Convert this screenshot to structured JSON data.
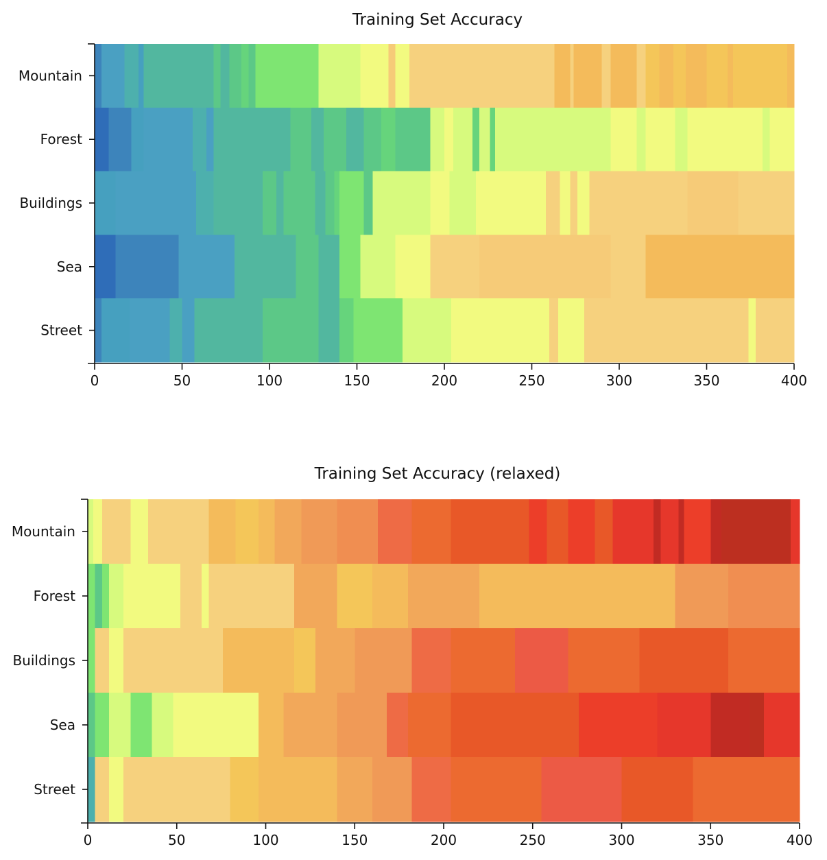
{
  "chart_data": [
    {
      "type": "heatmap",
      "title": "Training Set Accuracy",
      "xlabel": "",
      "ylabel": "",
      "xlim": [
        0,
        400
      ],
      "xticks": [
        0,
        50,
        100,
        150,
        200,
        250,
        300,
        350,
        400
      ],
      "rows": [
        "Mountain",
        "Forest",
        "Buildings",
        "Sea",
        "Street"
      ],
      "grid": false,
      "segments": [
        [
          [
            0,
            4,
            "#3d84bb"
          ],
          [
            4,
            17,
            "#4aa0c2"
          ],
          [
            17,
            25,
            "#4db0ad"
          ],
          [
            25,
            28,
            "#46a0bf"
          ],
          [
            28,
            68,
            "#52b79f"
          ],
          [
            68,
            72,
            "#5cc887"
          ],
          [
            72,
            77,
            "#52b79f"
          ],
          [
            77,
            84,
            "#5cc887"
          ],
          [
            84,
            88,
            "#66d47c"
          ],
          [
            88,
            92,
            "#5cc887"
          ],
          [
            92,
            128,
            "#7ee572"
          ],
          [
            128,
            152,
            "#d7fa7e"
          ],
          [
            152,
            168,
            "#f2fa80"
          ],
          [
            168,
            172,
            "#f6cb78"
          ],
          [
            172,
            180,
            "#f2fa80"
          ],
          [
            180,
            263,
            "#f6d17e"
          ],
          [
            263,
            272,
            "#f4bb5b"
          ],
          [
            272,
            274,
            "#f6d17e"
          ],
          [
            274,
            290,
            "#f4bb5b"
          ],
          [
            290,
            295,
            "#f6d17e"
          ],
          [
            295,
            310,
            "#f4bb5b"
          ],
          [
            310,
            315,
            "#f6d17e"
          ],
          [
            315,
            323,
            "#f4c659"
          ],
          [
            323,
            331,
            "#f4bb5b"
          ],
          [
            331,
            338,
            "#f4c659"
          ],
          [
            338,
            350,
            "#f4bb5b"
          ],
          [
            350,
            362,
            "#f4c659"
          ],
          [
            362,
            365,
            "#f4bb5b"
          ],
          [
            365,
            396,
            "#f4c659"
          ],
          [
            396,
            400,
            "#f4bb5b"
          ]
        ],
        [
          [
            0,
            8,
            "#2f6db8"
          ],
          [
            8,
            21,
            "#3d84bb"
          ],
          [
            21,
            28,
            "#46a0bf"
          ],
          [
            28,
            46,
            "#4aa0c2"
          ],
          [
            46,
            56,
            "#4aa0c2"
          ],
          [
            56,
            64,
            "#4db0ad"
          ],
          [
            64,
            68,
            "#4aa0c2"
          ],
          [
            68,
            112,
            "#52b79f"
          ],
          [
            112,
            124,
            "#5cc887"
          ],
          [
            124,
            131,
            "#52b79f"
          ],
          [
            131,
            144,
            "#5cc887"
          ],
          [
            144,
            154,
            "#52b79f"
          ],
          [
            154,
            164,
            "#5cc887"
          ],
          [
            164,
            172,
            "#66d47c"
          ],
          [
            172,
            192,
            "#5cc887"
          ],
          [
            192,
            200,
            "#d7fa7e"
          ],
          [
            200,
            205,
            "#f2fa80"
          ],
          [
            205,
            216,
            "#d7fa7e"
          ],
          [
            216,
            220,
            "#66d47c"
          ],
          [
            220,
            226,
            "#d7fa7e"
          ],
          [
            226,
            229,
            "#66d47c"
          ],
          [
            229,
            295,
            "#d7fa7e"
          ],
          [
            295,
            310,
            "#f2fa80"
          ],
          [
            310,
            315,
            "#d7fa7e"
          ],
          [
            315,
            332,
            "#f2fa80"
          ],
          [
            332,
            339,
            "#d7fa7e"
          ],
          [
            339,
            382,
            "#f2fa80"
          ],
          [
            382,
            386,
            "#d7fa7e"
          ],
          [
            386,
            400,
            "#f2fa80"
          ]
        ],
        [
          [
            0,
            12,
            "#46a0bf"
          ],
          [
            12,
            58,
            "#4aa0c2"
          ],
          [
            58,
            68,
            "#4db0ad"
          ],
          [
            68,
            96,
            "#52b79f"
          ],
          [
            96,
            104,
            "#5cc887"
          ],
          [
            104,
            108,
            "#52b79f"
          ],
          [
            108,
            126,
            "#5cc887"
          ],
          [
            126,
            132,
            "#52b79f"
          ],
          [
            132,
            137,
            "#5cc887"
          ],
          [
            137,
            140,
            "#66d47c"
          ],
          [
            140,
            154,
            "#7ee572"
          ],
          [
            154,
            159,
            "#5cc887"
          ],
          [
            159,
            192,
            "#d7fa7e"
          ],
          [
            192,
            203,
            "#f2fa80"
          ],
          [
            203,
            218,
            "#d7fa7e"
          ],
          [
            218,
            258,
            "#f2fa80"
          ],
          [
            258,
            266,
            "#f6d17e"
          ],
          [
            266,
            272,
            "#f2fa80"
          ],
          [
            272,
            276,
            "#f6d17e"
          ],
          [
            276,
            283,
            "#f2fa80"
          ],
          [
            283,
            294,
            "#f6d17e"
          ],
          [
            294,
            339,
            "#f6d17e"
          ],
          [
            339,
            368,
            "#f6cb78"
          ],
          [
            368,
            400,
            "#f6d17e"
          ]
        ],
        [
          [
            0,
            12,
            "#2f6db8"
          ],
          [
            12,
            33,
            "#3d84bb"
          ],
          [
            33,
            48,
            "#3d84bb"
          ],
          [
            48,
            80,
            "#4aa0c2"
          ],
          [
            80,
            100,
            "#52b79f"
          ],
          [
            100,
            115,
            "#52b79f"
          ],
          [
            115,
            128,
            "#5cc887"
          ],
          [
            128,
            140,
            "#52b79f"
          ],
          [
            140,
            152,
            "#7ee572"
          ],
          [
            152,
            172,
            "#d7fa7e"
          ],
          [
            172,
            192,
            "#f2fa80"
          ],
          [
            192,
            220,
            "#f6d17e"
          ],
          [
            220,
            295,
            "#f6cb78"
          ],
          [
            295,
            315,
            "#f6d17e"
          ],
          [
            315,
            350,
            "#f4bb5b"
          ],
          [
            350,
            400,
            "#f4bb5b"
          ]
        ],
        [
          [
            0,
            4,
            "#3d84bb"
          ],
          [
            4,
            20,
            "#46a0bf"
          ],
          [
            20,
            43,
            "#4aa0c2"
          ],
          [
            43,
            50,
            "#4db0ad"
          ],
          [
            50,
            57,
            "#4aa0c2"
          ],
          [
            57,
            68,
            "#52b79f"
          ],
          [
            68,
            96,
            "#52b79f"
          ],
          [
            96,
            108,
            "#5cc887"
          ],
          [
            108,
            128,
            "#5cc887"
          ],
          [
            128,
            140,
            "#52b79f"
          ],
          [
            140,
            148,
            "#66d47c"
          ],
          [
            148,
            176,
            "#7ee572"
          ],
          [
            176,
            204,
            "#d7fa7e"
          ],
          [
            204,
            235,
            "#f2fa80"
          ],
          [
            235,
            260,
            "#f2fa80"
          ],
          [
            260,
            265,
            "#f6d17e"
          ],
          [
            265,
            280,
            "#f2fa80"
          ],
          [
            280,
            310,
            "#f6d17e"
          ],
          [
            310,
            374,
            "#f6d17e"
          ],
          [
            374,
            378,
            "#f2fa80"
          ],
          [
            378,
            400,
            "#f6d17e"
          ]
        ]
      ]
    },
    {
      "type": "heatmap",
      "title": "Training Set Accuracy (relaxed)",
      "xlabel": "",
      "ylabel": "",
      "xlim": [
        0,
        400
      ],
      "xticks": [
        0,
        50,
        100,
        150,
        200,
        250,
        300,
        350,
        400
      ],
      "rows": [
        "Mountain",
        "Forest",
        "Buildings",
        "Sea",
        "Street"
      ],
      "grid": false,
      "segments": [
        [
          [
            0,
            3,
            "#d7fa7e"
          ],
          [
            3,
            8,
            "#f2fa80"
          ],
          [
            8,
            24,
            "#f6d17e"
          ],
          [
            24,
            34,
            "#f2fa80"
          ],
          [
            34,
            68,
            "#f6d17e"
          ],
          [
            68,
            83,
            "#f4bb5b"
          ],
          [
            83,
            96,
            "#f4c659"
          ],
          [
            96,
            105,
            "#f4bb5b"
          ],
          [
            105,
            120,
            "#f2a85a"
          ],
          [
            120,
            140,
            "#f09a57"
          ],
          [
            140,
            163,
            "#f08e51"
          ],
          [
            163,
            182,
            "#ee6b45"
          ],
          [
            182,
            204,
            "#ec6a30"
          ],
          [
            204,
            232,
            "#e85828"
          ],
          [
            232,
            248,
            "#e85828"
          ],
          [
            248,
            258,
            "#ec3e29"
          ],
          [
            258,
            270,
            "#e85828"
          ],
          [
            270,
            285,
            "#ec3e29"
          ],
          [
            285,
            295,
            "#e85828"
          ],
          [
            295,
            318,
            "#e6372b"
          ],
          [
            318,
            322,
            "#c12b23"
          ],
          [
            322,
            332,
            "#e6372b"
          ],
          [
            332,
            335,
            "#c12b23"
          ],
          [
            335,
            350,
            "#ec3e29"
          ],
          [
            350,
            356,
            "#c12b23"
          ],
          [
            356,
            395,
            "#bc2f20"
          ],
          [
            395,
            400,
            "#e6372b"
          ]
        ],
        [
          [
            0,
            4,
            "#7ee572"
          ],
          [
            4,
            8,
            "#5cc887"
          ],
          [
            8,
            12,
            "#7ee572"
          ],
          [
            12,
            20,
            "#d7fa7e"
          ],
          [
            20,
            52,
            "#f2fa80"
          ],
          [
            52,
            64,
            "#f6d17e"
          ],
          [
            64,
            68,
            "#f2fa80"
          ],
          [
            68,
            116,
            "#f6d17e"
          ],
          [
            116,
            140,
            "#f2a85a"
          ],
          [
            140,
            160,
            "#f4c659"
          ],
          [
            160,
            180,
            "#f4bb5b"
          ],
          [
            180,
            220,
            "#f2a85a"
          ],
          [
            220,
            330,
            "#f4bb5b"
          ],
          [
            330,
            360,
            "#f09a57"
          ],
          [
            360,
            400,
            "#f08e51"
          ]
        ],
        [
          [
            0,
            4,
            "#7ee572"
          ],
          [
            4,
            12,
            "#f6d17e"
          ],
          [
            12,
            20,
            "#f2fa80"
          ],
          [
            20,
            76,
            "#f6d17e"
          ],
          [
            76,
            116,
            "#f4bb5b"
          ],
          [
            116,
            128,
            "#f4c659"
          ],
          [
            128,
            150,
            "#f2a85a"
          ],
          [
            150,
            182,
            "#f09a57"
          ],
          [
            182,
            204,
            "#ee6b45"
          ],
          [
            204,
            240,
            "#ec6a30"
          ],
          [
            240,
            270,
            "#ec5a45"
          ],
          [
            270,
            310,
            "#ec6a30"
          ],
          [
            310,
            360,
            "#e85828"
          ],
          [
            360,
            400,
            "#ec6a30"
          ]
        ],
        [
          [
            0,
            4,
            "#5cc887"
          ],
          [
            4,
            12,
            "#7ee572"
          ],
          [
            12,
            24,
            "#d7fa7e"
          ],
          [
            24,
            36,
            "#7ee572"
          ],
          [
            36,
            48,
            "#d7fa7e"
          ],
          [
            48,
            96,
            "#f2fa80"
          ],
          [
            96,
            110,
            "#f4bb5b"
          ],
          [
            110,
            140,
            "#f2a85a"
          ],
          [
            140,
            168,
            "#f09a57"
          ],
          [
            168,
            180,
            "#ee6b45"
          ],
          [
            180,
            204,
            "#ec6a30"
          ],
          [
            204,
            232,
            "#e85828"
          ],
          [
            232,
            276,
            "#e85828"
          ],
          [
            276,
            320,
            "#ec3e29"
          ],
          [
            320,
            350,
            "#e6372b"
          ],
          [
            350,
            372,
            "#c12b23"
          ],
          [
            372,
            380,
            "#bc2f20"
          ],
          [
            380,
            400,
            "#e6372b"
          ]
        ],
        [
          [
            0,
            4,
            "#4db0ad"
          ],
          [
            4,
            12,
            "#f6d17e"
          ],
          [
            12,
            20,
            "#f2fa80"
          ],
          [
            20,
            52,
            "#f6d17e"
          ],
          [
            52,
            80,
            "#f6d17e"
          ],
          [
            80,
            96,
            "#f4c659"
          ],
          [
            96,
            140,
            "#f4bb5b"
          ],
          [
            140,
            160,
            "#f2a85a"
          ],
          [
            160,
            182,
            "#f09a57"
          ],
          [
            182,
            204,
            "#ee6b45"
          ],
          [
            204,
            255,
            "#ec6a30"
          ],
          [
            255,
            300,
            "#ec5a45"
          ],
          [
            300,
            340,
            "#e85828"
          ],
          [
            340,
            400,
            "#ec6a30"
          ]
        ]
      ]
    }
  ]
}
